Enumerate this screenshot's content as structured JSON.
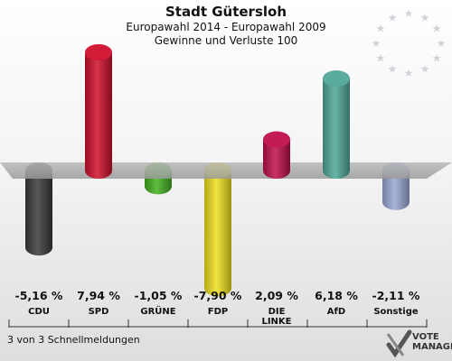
{
  "header": {
    "title": "Stadt Gütersloh",
    "subtitle1": "Europawahl 2014 - Europawahl 2009",
    "subtitle2": "Gewinne und Verluste 100"
  },
  "footer": {
    "text": "3 von 3 Schnellmeldungen"
  },
  "logo": {
    "line1": "VOTE",
    "line2": "MANAGER"
  },
  "chart_data": {
    "type": "bar",
    "title": "Stadt Gütersloh",
    "subtitle": "Europawahl 2014 - Europawahl 2009 / Gewinne und Verluste 100",
    "categories": [
      "CDU",
      "SPD",
      "GRÜNE",
      "FDP",
      "DIE LINKE",
      "AfD",
      "Sonstige"
    ],
    "category_lines": [
      [
        "CDU"
      ],
      [
        "SPD"
      ],
      [
        "GRÜNE"
      ],
      [
        "FDP"
      ],
      [
        "DIE",
        "LINKE"
      ],
      [
        "AfD"
      ],
      [
        "Sonstige"
      ]
    ],
    "values": [
      -5.16,
      7.94,
      -1.05,
      -7.9,
      2.09,
      6.18,
      -2.11
    ],
    "value_labels": [
      "-5,16 %",
      "7,94 %",
      "-1,05 %",
      "-7,90 %",
      "2,09 %",
      "6,18 %",
      "-2,11 %"
    ],
    "colors": [
      "#3a3a3a",
      "#d0102c",
      "#44b020",
      "#f0e020",
      "#c0104a",
      "#50a898",
      "#9aa8d4"
    ],
    "unit": "%",
    "grid": false,
    "legend": "none"
  }
}
